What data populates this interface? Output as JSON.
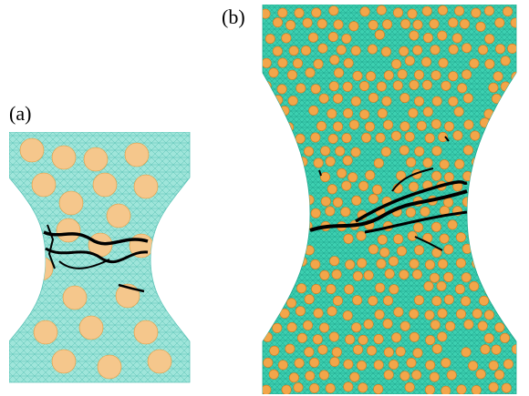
{
  "figure": {
    "panels": [
      {
        "label": "(a)",
        "matrix_color": "#9fe5da",
        "mesh_color": "#5cc3b7",
        "inclusion_color": "#f5c78c",
        "inclusion_edge": "#e49a3c",
        "crack_color": "#000000"
      },
      {
        "label": "(b)",
        "matrix_color": "#3ccfb0",
        "mesh_color": "#1fa68d",
        "inclusion_color": "#f2a64a",
        "inclusion_edge": "#d47a1c",
        "crack_color": "#000000"
      }
    ]
  }
}
